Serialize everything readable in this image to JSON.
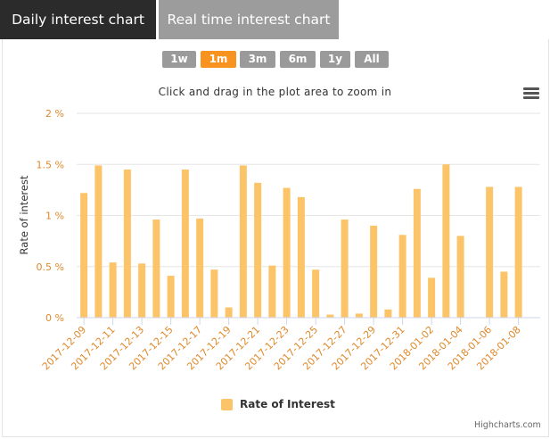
{
  "tabs": [
    {
      "label": "Daily interest chart"
    },
    {
      "label": "Real time interest chart"
    }
  ],
  "range_selector": {
    "buttons": [
      "1w",
      "1m",
      "3m",
      "6m",
      "1y",
      "All"
    ],
    "selected": "1m"
  },
  "menu_icon": "hamburger-menu-icon",
  "colors": {
    "bar": "#fbc469",
    "axis_label": "#e0892b",
    "tab_active_bg": "#2b2b2b",
    "tab_inactive_bg": "#9c9c9c",
    "range_selected": "#f7931e"
  },
  "credits": "Highcharts.com",
  "chart_data": {
    "type": "bar",
    "subtitle": "Click and drag in the plot area to zoom in",
    "ylabel": "Rate of interest",
    "ylim": [
      0,
      2
    ],
    "yticks": [
      0,
      0.5,
      1,
      1.5,
      2
    ],
    "ytick_labels": [
      "0 %",
      "0.5 %",
      "1 %",
      "1.5 %",
      "2 %"
    ],
    "legend": "Rate of Interest",
    "x_tick_labels": [
      "2017-12-09",
      "2017-12-11",
      "2017-12-13",
      "2017-12-15",
      "2017-12-17",
      "2017-12-19",
      "2017-12-21",
      "2017-12-23",
      "2017-12-25",
      "2017-12-27",
      "2017-12-29",
      "2017-12-31",
      "2018-01-02",
      "2018-01-04",
      "2018-01-06",
      "2018-01-08"
    ],
    "categories": [
      "2017-12-09",
      "2017-12-10",
      "2017-12-11",
      "2017-12-12",
      "2017-12-13",
      "2017-12-14",
      "2017-12-15",
      "2017-12-16",
      "2017-12-17",
      "2017-12-18",
      "2017-12-19",
      "2017-12-20",
      "2017-12-21",
      "2017-12-22",
      "2017-12-23",
      "2017-12-24",
      "2017-12-25",
      "2017-12-26",
      "2017-12-27",
      "2017-12-28",
      "2017-12-29",
      "2017-12-30",
      "2017-12-31",
      "2018-01-01",
      "2018-01-02",
      "2018-01-03",
      "2018-01-04",
      "2018-01-05",
      "2018-01-06",
      "2018-01-07",
      "2018-01-08",
      "2018-01-09"
    ],
    "values": [
      1.22,
      1.49,
      0.54,
      1.45,
      0.53,
      0.96,
      0.41,
      1.45,
      0.97,
      0.47,
      0.1,
      1.49,
      1.32,
      0.51,
      1.27,
      1.18,
      0.47,
      0.03,
      0.96,
      0.04,
      0.9,
      0.08,
      0.81,
      1.26,
      0.39,
      1.5,
      0.8,
      0,
      1.28,
      0.45,
      1.28,
      null
    ]
  }
}
